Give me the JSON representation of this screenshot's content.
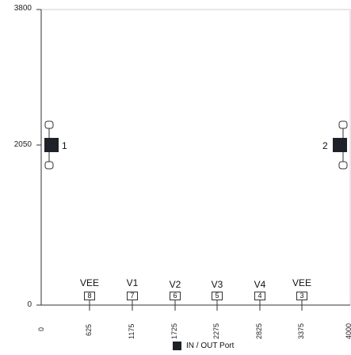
{
  "y_ticks": [
    "3800",
    "2050",
    "0"
  ],
  "x_ticks": [
    "0",
    "625",
    "1175",
    "1725",
    "2275",
    "2825",
    "3375",
    "4000"
  ],
  "ports": [
    {
      "label": "1",
      "side": "left"
    },
    {
      "label": "2",
      "side": "right"
    }
  ],
  "pins": [
    {
      "name": "VEE",
      "num": "8"
    },
    {
      "name": "V1",
      "num": "7"
    },
    {
      "name": "V2",
      "num": "6"
    },
    {
      "name": "V3",
      "num": "5"
    },
    {
      "name": "V4",
      "num": "4"
    },
    {
      "name": "VEE",
      "num": "3"
    }
  ],
  "legend": {
    "label": "IN / OUT Port"
  },
  "colors": {
    "port": "#1e2127",
    "axis": "#333333",
    "grid": "#dddddd"
  }
}
